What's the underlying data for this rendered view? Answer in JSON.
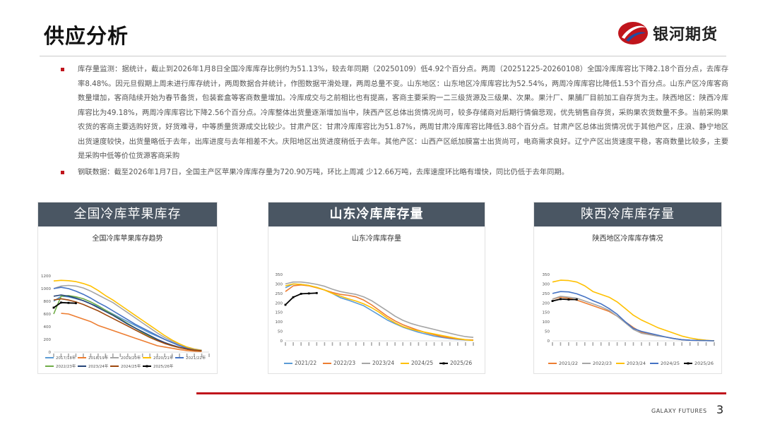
{
  "page": {
    "title": "供应分析",
    "logo_text": "银河期货",
    "footer_brand": "GALAXY FUTURES",
    "page_number": "3",
    "colors": {
      "accent": "#c0151c",
      "panel_header": "#4a5663"
    }
  },
  "bullets": [
    "库存量监测：据统计，截止到2026年1月8日全国冷库库存比例约为51.13%，较去年同期（20250109）低4.92个百分点。两周（20251225-20260108）全国冷库库容比下降2.18个百分点，去库存率8.48%。因元旦假期上周未进行库存统计，两周数据合并统计，作图数据平滑处理，两周总量不变。山东地区：山东地区冷库库容比为52.54%，两周冷库库容比降低1.53个百分点。山东产区冷库客商数量增加，客商陆续开始为春节备货，包装套盒等客商数量增加。冷库成交与之前相比也有提高，客商主要采购一二三级货源及三级果、次果。果汁厂、果脯厂目前加工自存货为主。陕西地区：陕西冷库库容比为49.18%，两周冷库库容比下降2.56个百分点。冷库整体出货量逐渐增加当中，陕西产区总体出货情况尚可，较多存储商对后期行情偏悲观，优先销售自存货，采购果农货数量不多。当前采购果农货的客商主要选购好货，好货难寻，中等质量货源成交比较少。甘肃产区：甘肃冷库库容比为51.87%，两周甘肃冷库库容比降低3.88个百分点。甘肃产区总体出货情况优于其他产区，庄浪、静宁地区出货速度较快，出货量略低于去年，出库进度与去年相差不大。庆阳地区出货进度稍低于去年。其他产区：山西产区纸加膜富士出货尚可，电商需求良好。辽宁产区出货速度平稳，客商数量比较多，主要是采购中低等价位货源客商采购",
    "钢联数据：截至2026年1月7日，全国主产区苹果冷库库存量为720.90万吨，环比上周减 少12.66万吨，去库速度环比略有增快，同比仍低于去年同期。"
  ],
  "panels": [
    {
      "header": "全国冷库苹果库存",
      "chart_title": "全国冷库苹果库存趋势"
    },
    {
      "header": "山东冷库库存量",
      "chart_title": "山东冷库库存量"
    },
    {
      "header": "陕西冷库库存量",
      "chart_title": "陕西地区冷库库存情况"
    }
  ],
  "chart_data": [
    {
      "type": "line",
      "title": "全国冷库苹果库存趋势",
      "ylim": [
        0,
        1200
      ],
      "yticks": [
        0,
        200,
        400,
        600,
        800,
        1000,
        1200
      ],
      "series": [
        {
          "name": "2017/18年",
          "color": "#5b9bd5",
          "values": [
            800,
            880,
            870,
            840,
            810,
            760,
            720,
            660,
            600,
            540,
            480,
            420,
            360,
            300,
            250,
            200,
            150,
            110,
            70,
            45,
            25
          ]
        },
        {
          "name": "2018/19年",
          "color": "#ed7d31",
          "values": [
            null,
            610,
            600,
            560,
            520,
            480,
            420,
            380,
            340,
            300,
            260,
            220,
            180,
            140,
            100,
            80,
            60,
            40,
            25,
            15,
            10
          ]
        },
        {
          "name": "2019/20年",
          "color": "#a5a5a5",
          "values": [
            1000,
            1040,
            1050,
            1040,
            1010,
            960,
            900,
            840,
            780,
            700,
            620,
            540,
            460,
            380,
            300,
            230,
            170,
            120,
            80,
            50,
            30
          ]
        },
        {
          "name": "2020/21年",
          "color": "#ffc000",
          "values": [
            1120,
            1130,
            1125,
            1110,
            1080,
            1040,
            970,
            890,
            820,
            740,
            660,
            580,
            500,
            420,
            340,
            260,
            190,
            130,
            80,
            45,
            25
          ]
        },
        {
          "name": "2021/22年",
          "color": "#4472c4",
          "values": [
            1000,
            1020,
            1000,
            960,
            910,
            850,
            780,
            720,
            650,
            580,
            510,
            440,
            380,
            320,
            260,
            200,
            150,
            100,
            60,
            35,
            20
          ]
        },
        {
          "name": "2022/23年",
          "color": "#70ad47",
          "values": [
            600,
            880,
            890,
            870,
            840,
            790,
            730,
            660,
            590,
            520,
            450,
            380,
            310,
            250,
            190,
            140,
            100,
            70,
            45,
            30,
            20
          ]
        },
        {
          "name": "2023/24年",
          "color": "#264478",
          "values": [
            880,
            900,
            880,
            850,
            810,
            760,
            700,
            640,
            580,
            510,
            440,
            380,
            320,
            260,
            200,
            150,
            110,
            75,
            50,
            30,
            20
          ]
        },
        {
          "name": "2024/25年",
          "color": "#9e480e",
          "values": [
            820,
            840,
            820,
            790,
            750,
            700,
            650,
            590,
            530,
            470,
            410,
            350,
            290,
            230,
            180,
            135,
            100,
            70,
            45,
            30,
            20
          ]
        },
        {
          "name": "2025/26年",
          "color": "#000000",
          "values": [
            700,
            780,
            775,
            770
          ]
        }
      ]
    },
    {
      "type": "line",
      "title": "山东冷库库存量",
      "ylim": [
        0,
        350
      ],
      "yticks": [
        0,
        50,
        100,
        150,
        200,
        250,
        300,
        350
      ],
      "series": [
        {
          "name": "2021/22",
          "color": "#5b9bd5",
          "values": [
            280,
            300,
            298,
            292,
            282,
            268,
            250,
            228,
            215,
            200,
            185,
            160,
            135,
            110,
            90,
            72,
            58,
            45,
            35,
            25,
            18,
            12,
            8,
            5,
            3
          ]
        },
        {
          "name": "2022/23",
          "color": "#ed7d31",
          "values": [
            260,
            290,
            295,
            290,
            280,
            268,
            255,
            245,
            240,
            232,
            215,
            190,
            160,
            130,
            105,
            85,
            70,
            55,
            42,
            32,
            22,
            15,
            10,
            6,
            4
          ]
        },
        {
          "name": "2023/24",
          "color": "#a5a5a5",
          "values": [
            300,
            310,
            310,
            305,
            298,
            288,
            272,
            260,
            252,
            245,
            232,
            212,
            185,
            158,
            130,
            108,
            92,
            80,
            70,
            60,
            50,
            40,
            30,
            22,
            18
          ]
        },
        {
          "name": "2024/25",
          "color": "#ffc000",
          "values": [
            290,
            300,
            298,
            292,
            282,
            268,
            250,
            236,
            222,
            210,
            195,
            175,
            150,
            120,
            95,
            75,
            62,
            52,
            44,
            36,
            28,
            20,
            12,
            6,
            2
          ]
        },
        {
          "name": "2025/26",
          "color": "#000000",
          "values": [
            190,
            230,
            248,
            250,
            252
          ]
        }
      ]
    },
    {
      "type": "line",
      "title": "陕西地区冷库库存情况",
      "ylim": [
        0,
        350
      ],
      "yticks": [
        0,
        50,
        100,
        150,
        200,
        250,
        300,
        350
      ],
      "series": [
        {
          "name": "2021/22",
          "color": "#ed7d31",
          "values": [
            220,
            230,
            225,
            215,
            200,
            185,
            170,
            155,
            130,
            100,
            70,
            45,
            35,
            28,
            20,
            12,
            6,
            3,
            2,
            1,
            0
          ]
        },
        {
          "name": "2022/23",
          "color": "#a5a5a5",
          "values": [
            220,
            235,
            230,
            225,
            210,
            195,
            180,
            160,
            130,
            95,
            60,
            40,
            32,
            25,
            20,
            12,
            6,
            3,
            2,
            1,
            0
          ]
        },
        {
          "name": "2023/24",
          "color": "#ffc000",
          "values": [
            310,
            320,
            318,
            310,
            290,
            260,
            245,
            230,
            205,
            170,
            135,
            110,
            90,
            70,
            55,
            40,
            25,
            15,
            8,
            3,
            0
          ]
        },
        {
          "name": "2024/25",
          "color": "#4472c4",
          "values": [
            250,
            260,
            258,
            248,
            232,
            212,
            195,
            170,
            140,
            100,
            65,
            50,
            40,
            30,
            20,
            12,
            6,
            3,
            2,
            1,
            0
          ]
        },
        {
          "name": "2025/26",
          "color": "#000000",
          "values": [
            210,
            220,
            218,
            218
          ]
        }
      ]
    }
  ]
}
